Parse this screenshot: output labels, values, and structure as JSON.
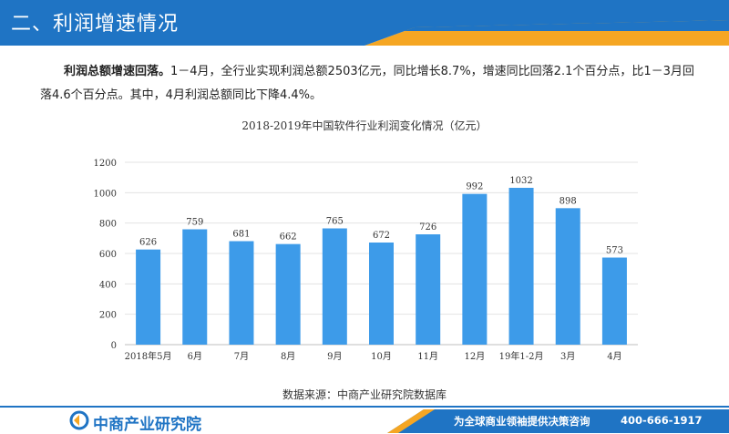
{
  "header": {
    "title": "二、利润增速情况",
    "colors": {
      "primary": "#1f74c4",
      "accent": "#f5a623"
    }
  },
  "body": {
    "lead": "利润总额增速回落。",
    "text": "1－4月，全行业实现利润总额2503亿元，同比增长8.7%，增速同比回落2.1个百分点，比1－3月回落4.6个百分点。其中，4月利润总额同比下降4.4%。"
  },
  "chart_data": {
    "type": "bar",
    "title": "2018-2019年中国软件行业利润变化情况（亿元）",
    "categories": [
      "2018年5月",
      "6月",
      "7月",
      "8月",
      "9月",
      "10月",
      "11月",
      "12月",
      "19年1-2月",
      "3月",
      "4月"
    ],
    "values": [
      626,
      759,
      681,
      662,
      765,
      672,
      726,
      992,
      1032,
      898,
      573
    ],
    "ylim": [
      0,
      1200
    ],
    "yticks": [
      0,
      200,
      400,
      600,
      800,
      1000,
      1200
    ],
    "grid": true,
    "bar_color": "#3d9be9"
  },
  "source": "数据来源：中商产业研究院数据库",
  "footer": {
    "logo_text": "中商产业研究院",
    "logo_icon": "company-logo-icon",
    "slogan": "为全球商业领袖提供决策咨询",
    "phone": "400-666-1917"
  }
}
